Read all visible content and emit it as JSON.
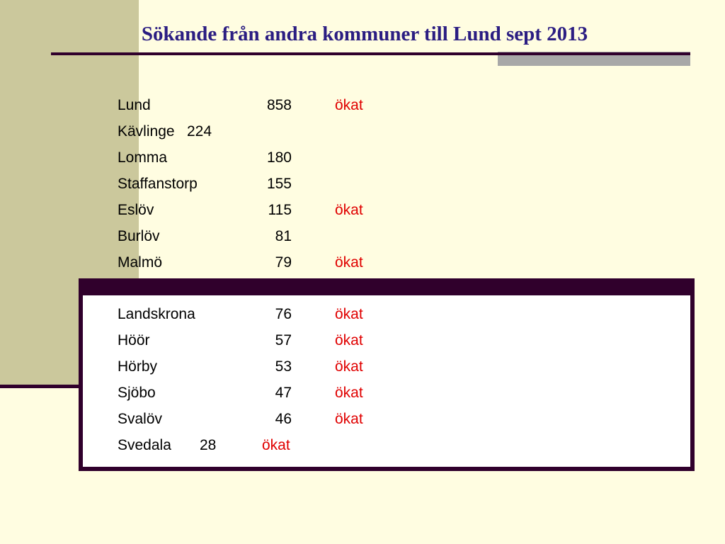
{
  "title": "Sökande från andra kommuner till Lund sept 2013",
  "rows": [
    {
      "name": "Lund",
      "value": "858",
      "status": "ökat"
    },
    {
      "name": "Kävlinge",
      "value": "224",
      "status": ""
    },
    {
      "name": "Lomma",
      "value": "180",
      "status": ""
    },
    {
      "name": "Staffanstorp",
      "value": "155",
      "status": ""
    },
    {
      "name": "Eslöv",
      "value": "115",
      "status": "ökat"
    },
    {
      "name": "Burlöv",
      "value": "81",
      "status": ""
    },
    {
      "name": "Malmö",
      "value": "79",
      "status": "ökat"
    },
    {
      "name": "Landskrona",
      "value": "76",
      "status": "ökat"
    },
    {
      "name": "Höör",
      "value": "57",
      "status": "ökat"
    },
    {
      "name": "Hörby",
      "value": "53",
      "status": "ökat"
    },
    {
      "name": "Sjöbo",
      "value": "47",
      "status": "ökat"
    },
    {
      "name": "Svalöv",
      "value": "46",
      "status": "ökat"
    },
    {
      "name": "Svedala",
      "value": "28",
      "status": "ökat"
    }
  ],
  "colors": {
    "background": "#FFFDE1",
    "sidebar": "#CBC89C",
    "rule": "#30002C",
    "title": "#2B1D82",
    "status": "#E00000",
    "gray_block": "#A8A8A8"
  }
}
